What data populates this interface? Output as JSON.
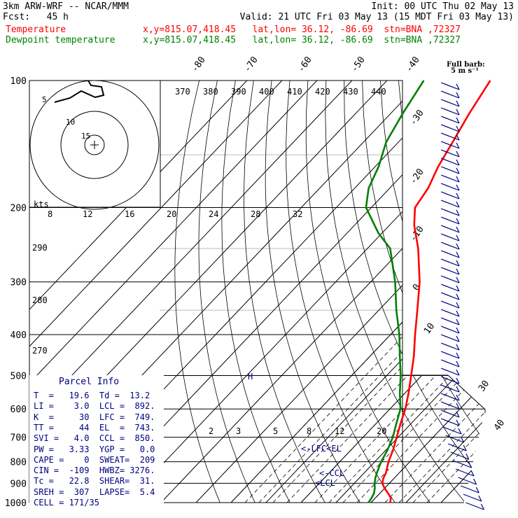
{
  "header": {
    "model": "3km ARW-WRF -- NCAR/MMM",
    "init": "Init: 00 UTC Thu 02 May 13",
    "fcst": "Fcst:   45 h",
    "valid": "Valid: 21 UTC Fri 03 May 13 (15 MDT Fri 03 May 13)",
    "temp_label": "Temperature",
    "temp_loc": "x,y=815.07,418.45   lat,lon= 36.12, -86.69  stn=BNA ,72327",
    "dew_label": "Dewpoint temperature",
    "dew_loc": "x,y=815.07,418.45   lat,lon= 36.12, -86.69  stn=BNA ,72327"
  },
  "colors": {
    "temperature": "#ff0000",
    "dewpoint": "#008000",
    "parcel_text": "#000080",
    "grid": "#000000",
    "wind": "#000080"
  },
  "hodograph": {
    "units_label": "kts",
    "rings": [
      "5",
      "10",
      "15"
    ]
  },
  "wind_barb_label": [
    "Full barb:",
    "5 m s⁻¹"
  ],
  "parcel_info": {
    "title": "Parcel Info",
    "rows": [
      "T  =   19.6  Td =  13.2",
      "LI =    3.0  LCL =  892.",
      "K  =     30  LFC =  749.",
      "TT =     44  EL  =  743.",
      "SVI =   4.0  CCL =  850.",
      "PW =   3.33  YGP =   0.0",
      "CAPE =    0  SWEAT=  209",
      "CIN =  -109  HWBZ= 3276.",
      "Tc =   22.8  SHEAR=  31.",
      "SREH =  307  LAPSE=  5.4",
      "CELL = 171/35"
    ]
  },
  "annotations": {
    "lfc_el": "<-LFC<EL",
    "ccl": "<-CCL",
    "lcl": "<LCL",
    "hodo_marker": "H"
  },
  "chart_data": {
    "type": "line",
    "title": "",
    "ylabel": "",
    "xlabel": "",
    "pressure_ticks": [
      "100",
      "200",
      "300",
      "400",
      "500",
      "600",
      "700",
      "800",
      "900",
      "1000"
    ],
    "isotherm_labels": [
      "-80",
      "-70",
      "-60",
      "-50",
      "-40",
      "-30",
      "-20",
      "-10",
      "0",
      "10",
      "30",
      "40"
    ],
    "theta_labels": [
      "370",
      "380",
      "390",
      "400",
      "410",
      "420",
      "430",
      "440"
    ],
    "theta_left_labels": [
      "290",
      "280",
      "270"
    ],
    "mixing_ratio_labels_upper": [
      "8",
      "12",
      "16",
      "20",
      "24",
      "28",
      "32"
    ],
    "mixing_ratio_labels_lower": [
      "2",
      "3",
      "5",
      "8",
      "12",
      "20"
    ],
    "series": [
      {
        "name": "Temperature",
        "points": [
          [
            1000,
            25.5
          ],
          [
            975,
            24.4
          ],
          [
            950,
            22.3
          ],
          [
            925,
            20.0
          ],
          [
            900,
            18.0
          ],
          [
            875,
            16.9
          ],
          [
            850,
            16.2
          ],
          [
            800,
            13.9
          ],
          [
            750,
            12.0
          ],
          [
            700,
            9.6
          ],
          [
            650,
            7.0
          ],
          [
            600,
            4.4
          ],
          [
            550,
            1.0
          ],
          [
            500,
            -3.0
          ],
          [
            450,
            -7.5
          ],
          [
            400,
            -13.0
          ],
          [
            350,
            -19.0
          ],
          [
            300,
            -26.0
          ],
          [
            250,
            -35.5
          ],
          [
            220,
            -43.0
          ],
          [
            200,
            -47.5
          ],
          [
            180,
            -49.0
          ],
          [
            160,
            -52.0
          ],
          [
            140,
            -54.5
          ],
          [
            120,
            -57.5
          ],
          [
            100,
            -60.5
          ]
        ]
      },
      {
        "name": "Dewpoint temperature",
        "points": [
          [
            1000,
            19.3
          ],
          [
            975,
            18.9
          ],
          [
            950,
            18.3
          ],
          [
            925,
            17.2
          ],
          [
            900,
            15.8
          ],
          [
            875,
            14.6
          ],
          [
            850,
            13.6
          ],
          [
            800,
            11.8
          ],
          [
            750,
            10.4
          ],
          [
            700,
            8.5
          ],
          [
            650,
            5.8
          ],
          [
            600,
            3.0
          ],
          [
            550,
            -1.5
          ],
          [
            500,
            -6.0
          ],
          [
            450,
            -11.5
          ],
          [
            400,
            -17.5
          ],
          [
            350,
            -25.0
          ],
          [
            300,
            -33.0
          ],
          [
            250,
            -43.5
          ],
          [
            230,
            -51.0
          ],
          [
            200,
            -61.5
          ],
          [
            180,
            -66.0
          ],
          [
            160,
            -69.0
          ],
          [
            140,
            -73.5
          ],
          [
            120,
            -76.5
          ],
          [
            100,
            -79.5
          ]
        ]
      }
    ]
  }
}
